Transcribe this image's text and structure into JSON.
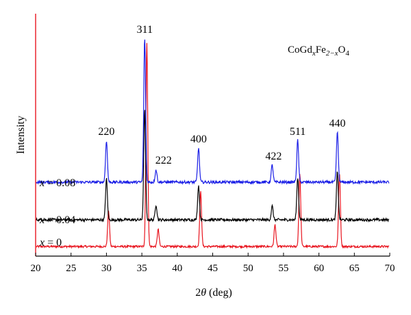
{
  "chart_data": {
    "type": "line",
    "title": "",
    "xlabel": "2θ (deg)",
    "ylabel": "Intensity",
    "xlim": [
      20,
      70
    ],
    "x_ticks": [
      20,
      25,
      30,
      35,
      40,
      45,
      50,
      55,
      60,
      65,
      70
    ],
    "y_scale": "arbitrary",
    "grid": false,
    "legend": "none",
    "formula_label": {
      "parts": [
        "CoGd",
        "x",
        "Fe",
        "2−x",
        "O",
        "4"
      ],
      "styles": [
        "normal",
        "sub-italic",
        "normal",
        "sub-italic",
        "normal",
        "sub"
      ]
    },
    "peak_labels": [
      {
        "text": "220",
        "x": 30.0
      },
      {
        "text": "311",
        "x": 35.4
      },
      {
        "text": "222",
        "x": 37.0
      },
      {
        "text": "400",
        "x": 43.0
      },
      {
        "text": "422",
        "x": 53.4
      },
      {
        "text": "511",
        "x": 57.0
      },
      {
        "text": "440",
        "x": 62.6
      }
    ],
    "series": [
      {
        "name": "x = 0",
        "color": "#e8141e",
        "noise": 3,
        "peaks": [
          {
            "x": 30.3,
            "h": 52
          },
          {
            "x": 35.7,
            "h": 298
          },
          {
            "x": 37.3,
            "h": 25
          },
          {
            "x": 43.3,
            "h": 80
          },
          {
            "x": 53.8,
            "h": 32
          },
          {
            "x": 57.3,
            "h": 106
          },
          {
            "x": 62.9,
            "h": 108
          }
        ]
      },
      {
        "name": "x = 0.04",
        "color": "#000000",
        "noise": 4,
        "peaks": [
          {
            "x": 30.0,
            "h": 60
          },
          {
            "x": 35.4,
            "h": 160
          },
          {
            "x": 37.0,
            "h": 22
          },
          {
            "x": 43.0,
            "h": 50
          },
          {
            "x": 53.4,
            "h": 20
          },
          {
            "x": 57.0,
            "h": 62
          },
          {
            "x": 62.6,
            "h": 70
          }
        ]
      },
      {
        "name": "x = 0.08",
        "color": "#1a1ee6",
        "noise": 4,
        "peaks": [
          {
            "x": 30.0,
            "h": 61
          },
          {
            "x": 35.4,
            "h": 211
          },
          {
            "x": 37.0,
            "h": 18
          },
          {
            "x": 43.0,
            "h": 50
          },
          {
            "x": 53.4,
            "h": 25
          },
          {
            "x": 57.0,
            "h": 61
          },
          {
            "x": 62.6,
            "h": 73
          }
        ]
      }
    ]
  }
}
